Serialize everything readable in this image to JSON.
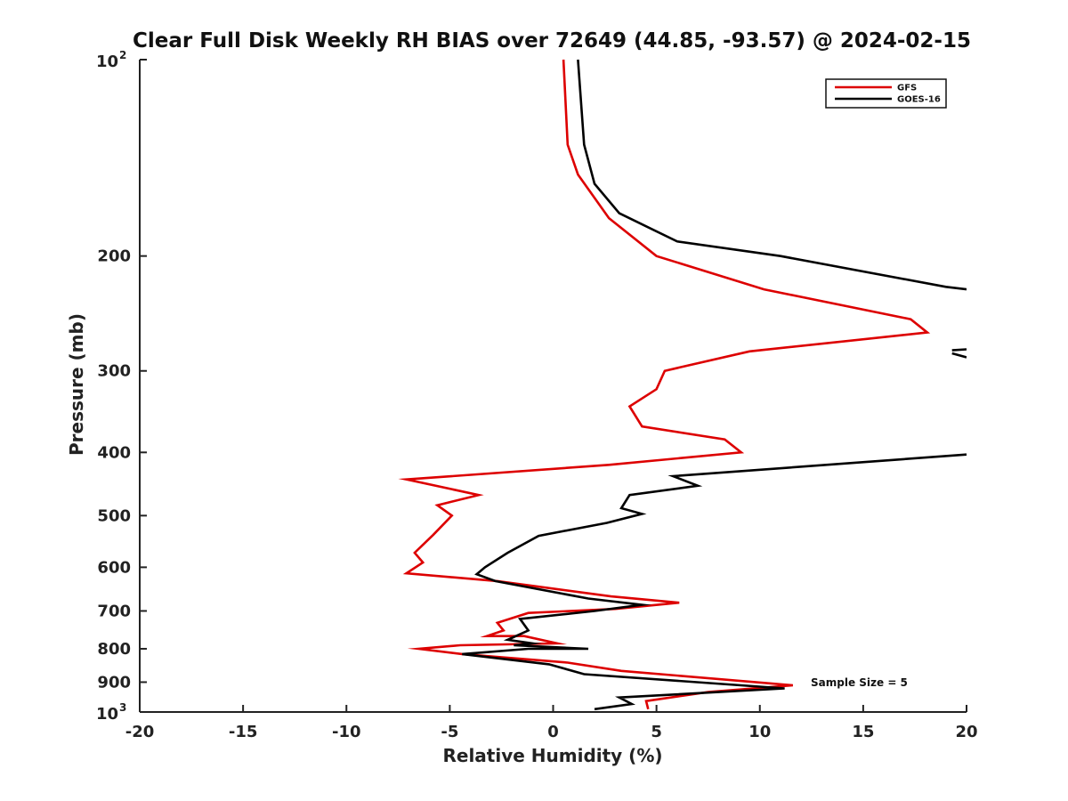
{
  "chart_data": {
    "type": "line",
    "title": "Clear Full Disk Weekly RH BIAS over 72649 (44.85, -93.57) @ 2024-02-15",
    "xlabel": "Relative Humidity (%)",
    "ylabel": "Pressure (mb)",
    "xlim": [
      -20,
      20
    ],
    "ylim": [
      100,
      1000
    ],
    "y_scale": "log",
    "y_reversed": true,
    "grid": false,
    "legend_position": "top-right",
    "x_tick_labels": [
      "-20",
      "-15",
      "-10",
      "-5",
      "0",
      "5",
      "10",
      "15",
      "20"
    ],
    "y_tick_labels": [
      "200",
      "300",
      "400",
      "500",
      "600",
      "700",
      "800",
      "900"
    ],
    "y_end_labels": {
      "top_base": "10",
      "top_exp": "2",
      "bottom_base": "10",
      "bottom_exp": "3"
    },
    "annotation": "Sample Size = 5",
    "series": [
      {
        "name": "GFS",
        "color": "#dd0000",
        "points": [
          [
            0.5,
            100
          ],
          [
            0.7,
            135
          ],
          [
            1.2,
            150
          ],
          [
            2.7,
            175
          ],
          [
            5.0,
            200
          ],
          [
            10.2,
            225
          ],
          [
            17.3,
            250
          ],
          [
            18.1,
            262
          ],
          [
            9.5,
            280
          ],
          [
            5.4,
            300
          ],
          [
            5.0,
            320
          ],
          [
            3.7,
            340
          ],
          [
            4.3,
            365
          ],
          [
            8.3,
            382
          ],
          [
            9.1,
            400
          ],
          [
            2.7,
            418
          ],
          [
            -7.1,
            440
          ],
          [
            -3.6,
            465
          ],
          [
            -5.6,
            482
          ],
          [
            -4.9,
            500
          ],
          [
            -5.8,
            535
          ],
          [
            -6.7,
            570
          ],
          [
            -6.3,
            590
          ],
          [
            -7.1,
            613
          ],
          [
            -2.7,
            630
          ],
          [
            2.8,
            665
          ],
          [
            6.1,
            680
          ],
          [
            3.0,
            695
          ],
          [
            -1.2,
            705
          ],
          [
            -2.7,
            730
          ],
          [
            -2.4,
            750
          ],
          [
            -3.2,
            765
          ],
          [
            -1.4,
            765
          ],
          [
            0.2,
            785
          ],
          [
            -4.5,
            790
          ],
          [
            -6.5,
            800
          ],
          [
            -4.4,
            815
          ],
          [
            0.7,
            840
          ],
          [
            3.3,
            865
          ],
          [
            11.6,
            910
          ],
          [
            7.5,
            932
          ],
          [
            4.5,
            962
          ],
          [
            4.6,
            990
          ]
        ]
      },
      {
        "name": "GOES-16",
        "color": "#000000",
        "points": [
          [
            1.2,
            100
          ],
          [
            1.5,
            135
          ],
          [
            2.0,
            155
          ],
          [
            3.2,
            172
          ],
          [
            6.0,
            190
          ],
          [
            11.0,
            200
          ],
          [
            19.0,
            223
          ],
          [
            20.0,
            225
          ],
          null,
          [
            19.3,
            279
          ],
          [
            20.0,
            278
          ],
          null,
          [
            20.0,
            286
          ],
          [
            19.3,
            282
          ],
          null,
          [
            20.0,
            403
          ],
          [
            5.8,
            435
          ],
          [
            7.0,
            450
          ],
          [
            3.7,
            465
          ],
          [
            3.3,
            487
          ],
          [
            4.3,
            497
          ],
          [
            2.6,
            513
          ],
          [
            -0.7,
            537
          ],
          [
            -2.2,
            570
          ],
          [
            -3.3,
            600
          ],
          [
            -3.7,
            615
          ],
          [
            -2.8,
            630
          ],
          [
            1.7,
            670
          ],
          [
            4.3,
            685
          ],
          [
            2.0,
            700
          ],
          [
            -1.6,
            720
          ],
          [
            -1.2,
            750
          ],
          [
            -2.2,
            775
          ],
          [
            -1.0,
            785
          ],
          [
            -1.9,
            790
          ],
          [
            1.7,
            800
          ],
          [
            -1.2,
            800
          ],
          [
            -4.4,
            815
          ],
          [
            -0.2,
            845
          ],
          [
            1.5,
            875
          ],
          [
            11.2,
            920
          ],
          [
            3.2,
            950
          ],
          [
            3.8,
            972
          ],
          [
            2.0,
            990
          ]
        ]
      }
    ]
  }
}
